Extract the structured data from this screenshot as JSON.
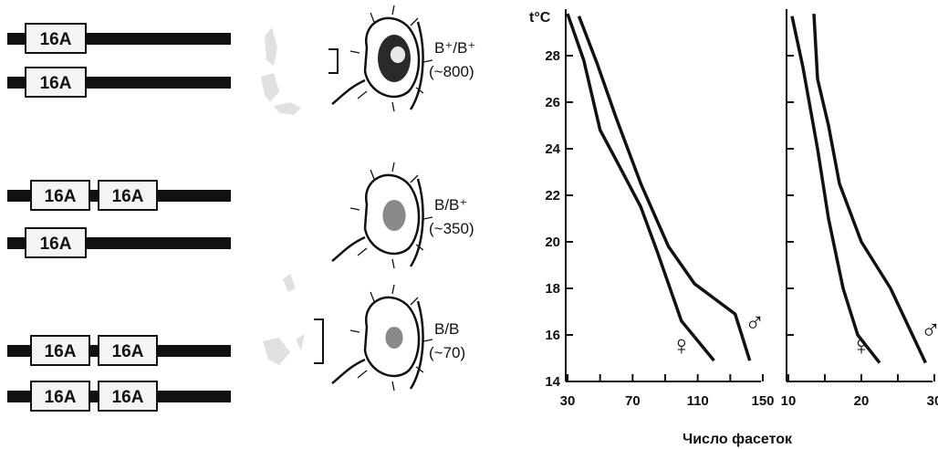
{
  "genotypes": [
    {
      "id": "wild",
      "label": "B⁺/B⁺",
      "count": "(~800)",
      "chromosomes": [
        [
          "16A"
        ],
        [
          "16A"
        ]
      ],
      "eye_size": 1.0
    },
    {
      "id": "hetero",
      "label": "B/B⁺",
      "count": "(~350)",
      "chromosomes": [
        [
          "16A",
          "16A"
        ],
        [
          "16A"
        ]
      ],
      "eye_size": 0.55
    },
    {
      "id": "homo",
      "label": "B/B",
      "count": "(~70)",
      "chromosomes": [
        [
          "16A",
          "16A"
        ],
        [
          "16A",
          "16A"
        ]
      ],
      "eye_size": 0.3
    }
  ],
  "chart_data": [
    {
      "type": "line",
      "ylabel": "t°C",
      "xlabel": "Число фасеток",
      "x_ticks": [
        30,
        70,
        110,
        150
      ],
      "y_ticks": [
        14,
        16,
        18,
        20,
        22,
        24,
        26,
        28
      ],
      "xlim": [
        30,
        150
      ],
      "ylim": [
        14,
        30
      ],
      "series": [
        {
          "name": "♀",
          "points": [
            [
              30,
              29.8
            ],
            [
              40,
              27.8
            ],
            [
              50,
              24.8
            ],
            [
              60,
              23.5
            ],
            [
              75,
              21.5
            ],
            [
              85,
              19.6
            ],
            [
              100,
              16.6
            ],
            [
              120,
              14.9
            ]
          ]
        },
        {
          "name": "♂",
          "points": [
            [
              37,
              29.7
            ],
            [
              48,
              27.7
            ],
            [
              60,
              25.3
            ],
            [
              75,
              22.5
            ],
            [
              92,
              19.8
            ],
            [
              108,
              18.2
            ],
            [
              133,
              16.9
            ],
            [
              142,
              14.9
            ]
          ]
        }
      ]
    },
    {
      "type": "line",
      "xlabel": "",
      "x_ticks": [
        10,
        20,
        30
      ],
      "y_ticks": [
        14,
        16,
        18,
        20,
        22,
        24,
        26,
        28
      ],
      "xlim": [
        10,
        30
      ],
      "ylim": [
        14,
        30
      ],
      "series": [
        {
          "name": "♀",
          "points": [
            [
              10.5,
              29.7
            ],
            [
              12,
              27.5
            ],
            [
              14,
              24.0
            ],
            [
              15.5,
              21.0
            ],
            [
              17.5,
              18.0
            ],
            [
              19.5,
              16.0
            ],
            [
              22.5,
              14.8
            ]
          ]
        },
        {
          "name": "♂",
          "points": [
            [
              13.5,
              29.8
            ],
            [
              14,
              27.0
            ],
            [
              15.5,
              25.0
            ],
            [
              17,
              22.5
            ],
            [
              20,
              20.0
            ],
            [
              24,
              18.0
            ],
            [
              28.8,
              14.8
            ]
          ]
        }
      ]
    }
  ],
  "symbols": {
    "female": "♀",
    "male": "♂"
  }
}
